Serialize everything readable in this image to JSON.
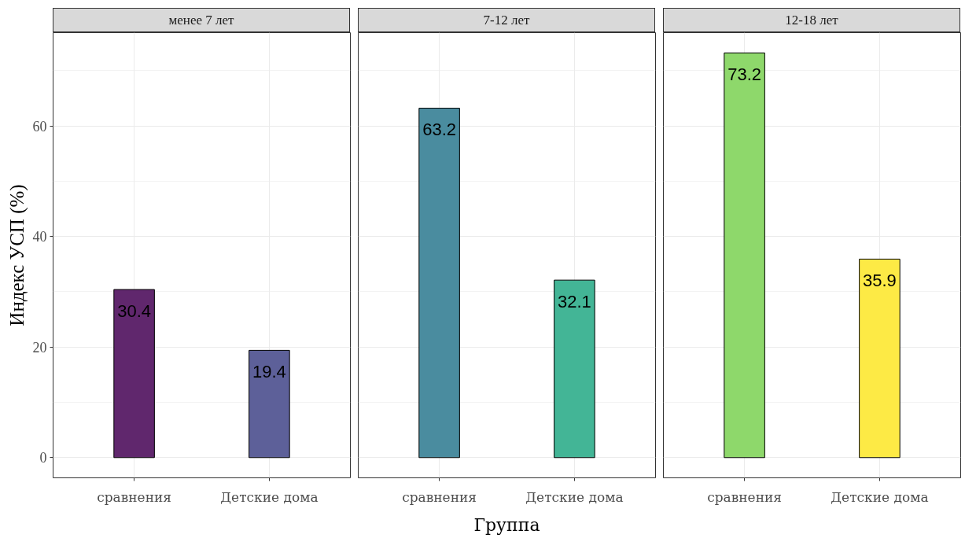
{
  "chart_data": [
    {
      "type": "bar",
      "title": "менее 7 лет",
      "categories": [
        "сравнения",
        "Детские дома"
      ],
      "values": [
        30.4,
        19.4
      ],
      "colors": [
        "#60276d",
        "#5d6099"
      ],
      "data_labels": true,
      "ylabel": "Индекс УСП (%)",
      "ylim": [
        -3.66,
        76.86
      ],
      "yticks": [
        0,
        {
          "value": 10,
          "label": null
        },
        20,
        {
          "value": 30,
          "label": null
        },
        40,
        {
          "value": 50,
          "label": null
        },
        60,
        {
          "value": 70,
          "label": null
        }
      ],
      "grid": true
    },
    {
      "type": "bar",
      "title": "7-12 лет",
      "categories": [
        "сравнения",
        "Детские дома"
      ],
      "values": [
        63.2,
        32.1
      ],
      "colors": [
        "#4a8c9f",
        "#43b596"
      ],
      "data_labels": true,
      "xlabel": "Группа",
      "ylim": [
        -3.66,
        76.86
      ],
      "yticks": [
        0,
        {
          "value": 10,
          "label": null
        },
        20,
        {
          "value": 30,
          "label": null
        },
        40,
        {
          "value": 50,
          "label": null
        },
        60,
        {
          "value": 70,
          "label": null
        }
      ],
      "grid": true,
      "tick_labels": "x"
    },
    {
      "type": "bar",
      "title": "12-18 лет",
      "categories": [
        "сравнения",
        "Детские дома"
      ],
      "values": [
        73.2,
        35.9
      ],
      "colors": [
        "#8ed86b",
        "#fdea45"
      ],
      "data_labels": true,
      "ylim": [
        -3.66,
        76.86
      ],
      "yticks": [
        0,
        {
          "value": 10,
          "label": null
        },
        20,
        {
          "value": 30,
          "label": null
        },
        40,
        {
          "value": 50,
          "label": null
        },
        60,
        {
          "value": 70,
          "label": null
        }
      ],
      "grid": true,
      "tick_labels": "x"
    }
  ]
}
